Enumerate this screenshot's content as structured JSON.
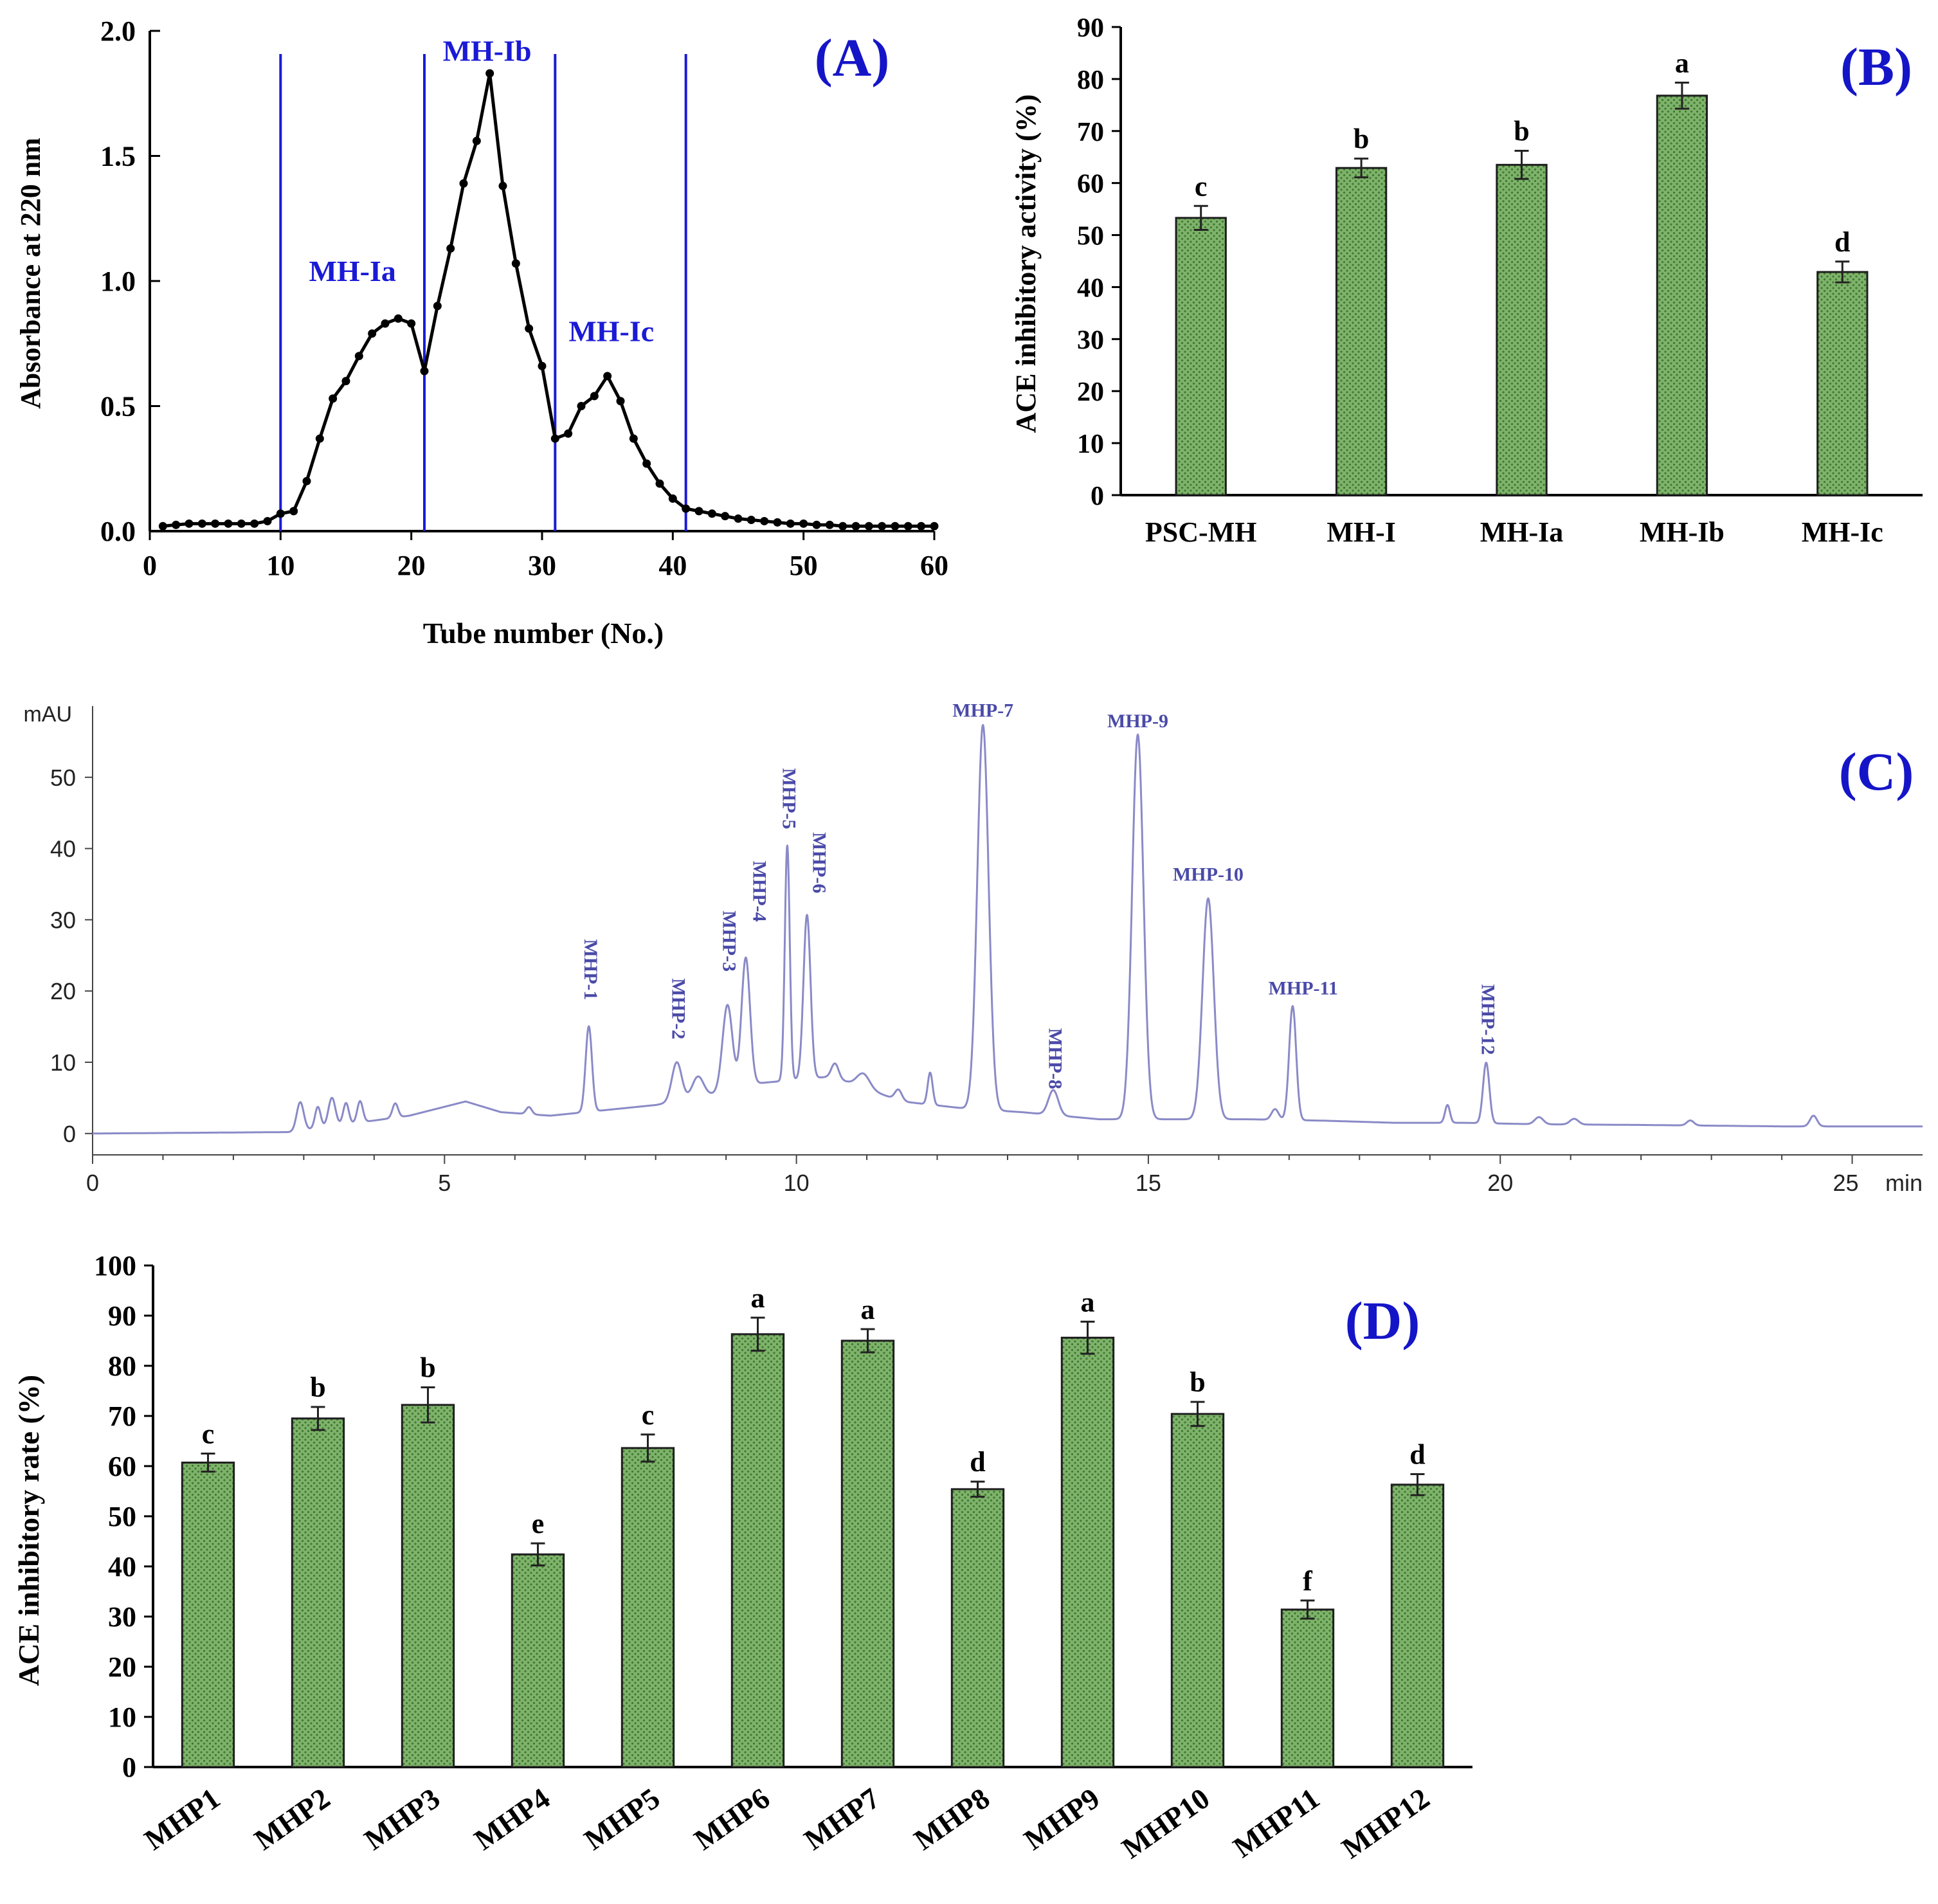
{
  "colors": {
    "axis": "#000000",
    "fraction_label": "#1a1ad6",
    "panel_label": "#1515c8",
    "hplc_trace": "#8a8ac8",
    "hplc_label": "#4a4aa8",
    "bar_fill": "#7fb26a",
    "bar_dot": "#3e7a34",
    "bar_edge": "#1e1e1e"
  },
  "chart_data": [
    {
      "id": "A",
      "type": "line",
      "panel_label": "(A)",
      "xlabel": "Tube number (No.)",
      "ylabel": "Absorbance at 220 nm",
      "xlim": [
        0,
        60
      ],
      "ylim": [
        0,
        2.0
      ],
      "xticks": [
        "0",
        "10",
        "20",
        "30",
        "40",
        "50",
        "60"
      ],
      "yticks": [
        "0.0",
        "0.5",
        "1.0",
        "1.5",
        "2.0"
      ],
      "x": [
        1,
        2,
        3,
        4,
        5,
        6,
        7,
        8,
        9,
        10,
        11,
        12,
        13,
        14,
        15,
        16,
        17,
        18,
        19,
        20,
        21,
        22,
        23,
        24,
        25,
        26,
        27,
        28,
        29,
        30,
        31,
        32,
        33,
        34,
        35,
        36,
        37,
        38,
        39,
        40,
        41,
        42,
        43,
        44,
        45,
        46,
        47,
        48,
        49,
        50,
        51,
        52,
        53,
        54,
        55,
        56,
        57,
        58,
        59,
        60
      ],
      "y": [
        0.02,
        0.025,
        0.03,
        0.03,
        0.03,
        0.03,
        0.03,
        0.03,
        0.04,
        0.07,
        0.08,
        0.2,
        0.37,
        0.53,
        0.6,
        0.7,
        0.79,
        0.83,
        0.85,
        0.83,
        0.64,
        0.9,
        1.13,
        1.39,
        1.56,
        1.83,
        1.38,
        1.07,
        0.81,
        0.66,
        0.37,
        0.39,
        0.5,
        0.54,
        0.62,
        0.52,
        0.37,
        0.27,
        0.19,
        0.13,
        0.09,
        0.08,
        0.07,
        0.06,
        0.05,
        0.045,
        0.04,
        0.035,
        0.03,
        0.03,
        0.025,
        0.025,
        0.02,
        0.02,
        0.02,
        0.02,
        0.02,
        0.02,
        0.02,
        0.02
      ],
      "dividers": [
        10,
        21,
        31,
        41
      ],
      "fractions": [
        {
          "label": "MH-Ia",
          "x": 15.5,
          "y": 1.0
        },
        {
          "label": "MH-Ib",
          "x": 25.8,
          "y": 1.88
        },
        {
          "label": "MH-Ic",
          "x": 35.3,
          "y": 0.76
        }
      ]
    },
    {
      "id": "B",
      "type": "bar",
      "panel_label": "(B)",
      "ylabel": "ACE inhibitory activity (%)",
      "ylim": [
        0,
        90
      ],
      "yticks": [
        "0",
        "10",
        "20",
        "30",
        "40",
        "50",
        "60",
        "70",
        "80",
        "90"
      ],
      "categories": [
        "PSC-MH",
        "MH-I",
        "MH-Ia",
        "MH-Ib",
        "MH-Ic"
      ],
      "values": [
        53.3,
        62.9,
        63.5,
        76.8,
        42.9
      ],
      "errors": [
        2.3,
        1.8,
        2.7,
        2.5,
        2.0
      ],
      "letters": [
        "c",
        "b",
        "b",
        "a",
        "d"
      ]
    },
    {
      "id": "C",
      "type": "line",
      "panel_label": "(C)",
      "ylabel": "mAU",
      "xunit": "min",
      "xlim": [
        0,
        26
      ],
      "ylim": [
        -3,
        60
      ],
      "xticks": [
        "0",
        "5",
        "10",
        "15",
        "20",
        "25"
      ],
      "yticks": [
        "0",
        "10",
        "20",
        "30",
        "40",
        "50"
      ],
      "baseline": [
        [
          0,
          0
        ],
        [
          2.8,
          0.2
        ],
        [
          4.5,
          2.5
        ],
        [
          5.3,
          4.5
        ],
        [
          5.8,
          3
        ],
        [
          6.5,
          2.5
        ],
        [
          7.5,
          3.5
        ],
        [
          8,
          4
        ],
        [
          8.6,
          5
        ],
        [
          9.4,
          7
        ],
        [
          10.5,
          8
        ],
        [
          11.5,
          4.5
        ],
        [
          12.4,
          3.5
        ],
        [
          13.2,
          3
        ],
        [
          14.3,
          2
        ],
        [
          15.4,
          2
        ],
        [
          16.4,
          2
        ],
        [
          17.5,
          1.8
        ],
        [
          18.5,
          1.5
        ],
        [
          19.5,
          1.5
        ],
        [
          20.5,
          1.3
        ],
        [
          22,
          1.2
        ],
        [
          24,
          1.0
        ],
        [
          26,
          1.0
        ]
      ],
      "peaks": [
        [
          2.95,
          4,
          0.05
        ],
        [
          3.2,
          3,
          0.04
        ],
        [
          3.4,
          4,
          0.05
        ],
        [
          3.6,
          3,
          0.04
        ],
        [
          3.8,
          3,
          0.04
        ],
        [
          4.3,
          2,
          0.04
        ],
        [
          6.2,
          1,
          0.04
        ],
        [
          7.05,
          12,
          0.045
        ],
        [
          8.3,
          5.5,
          0.07
        ],
        [
          8.6,
          3,
          0.08
        ],
        [
          9.02,
          12,
          0.07
        ],
        [
          9.28,
          18,
          0.06
        ],
        [
          9.87,
          33,
          0.035
        ],
        [
          10.15,
          23,
          0.05
        ],
        [
          10.55,
          2,
          0.05
        ],
        [
          10.95,
          2,
          0.09
        ],
        [
          11.45,
          1.5,
          0.05
        ],
        [
          11.9,
          4.5,
          0.035
        ],
        [
          12.65,
          54,
          0.08
        ],
        [
          13.65,
          3.5,
          0.07
        ],
        [
          14.85,
          54,
          0.08
        ],
        [
          15.85,
          31,
          0.08
        ],
        [
          16.8,
          1.5,
          0.05
        ],
        [
          17.05,
          16,
          0.05
        ],
        [
          19.25,
          2.5,
          0.035
        ],
        [
          19.8,
          8.5,
          0.045
        ],
        [
          20.55,
          1,
          0.06
        ],
        [
          21.05,
          0.8,
          0.06
        ],
        [
          22.7,
          0.7,
          0.05
        ],
        [
          24.45,
          1.5,
          0.05
        ]
      ],
      "peak_labels": [
        {
          "label": "MHP-1",
          "x": 7.05,
          "y": 23,
          "vertical": true
        },
        {
          "label": "MHP-2",
          "x": 8.3,
          "y": 17.5,
          "vertical": true
        },
        {
          "label": "MHP-3",
          "x": 9.02,
          "y": 27,
          "vertical": true
        },
        {
          "label": "MHP-4",
          "x": 9.45,
          "y": 34,
          "vertical": true
        },
        {
          "label": "MHP-5",
          "x": 9.87,
          "y": 47,
          "vertical": true
        },
        {
          "label": "MHP-6",
          "x": 10.3,
          "y": 38,
          "vertical": true
        },
        {
          "label": "MHP-7",
          "x": 12.65,
          "y": 58.5,
          "vertical": false
        },
        {
          "label": "MHP-8",
          "x": 13.65,
          "y": 10.5,
          "vertical": true
        },
        {
          "label": "MHP-9",
          "x": 14.85,
          "y": 57,
          "vertical": false
        },
        {
          "label": "MHP-10",
          "x": 15.85,
          "y": 35.5,
          "vertical": false
        },
        {
          "label": "MHP-11",
          "x": 17.2,
          "y": 19.5,
          "vertical": false
        },
        {
          "label": "MHP-12",
          "x": 19.8,
          "y": 16,
          "vertical": true
        }
      ]
    },
    {
      "id": "D",
      "type": "bar",
      "panel_label": "(D)",
      "ylabel": "ACE inhibitory rate (%)",
      "ylim": [
        0,
        100
      ],
      "yticks": [
        "0",
        "10",
        "20",
        "30",
        "40",
        "50",
        "60",
        "70",
        "80",
        "90",
        "100"
      ],
      "categories": [
        "MHP1",
        "MHP2",
        "MHP3",
        "MHP4",
        "MHP5",
        "MHP6",
        "MHP7",
        "MHP8",
        "MHP9",
        "MHP10",
        "MHP11",
        "MHP12"
      ],
      "values": [
        60.7,
        69.5,
        72.2,
        42.4,
        63.6,
        86.3,
        85.0,
        55.4,
        85.6,
        70.4,
        31.4,
        56.3
      ],
      "errors": [
        1.8,
        2.3,
        3.5,
        2.2,
        2.7,
        3.3,
        2.3,
        1.5,
        3.2,
        2.4,
        1.8,
        2.1
      ],
      "letters": [
        "c",
        "b",
        "b",
        "e",
        "c",
        "a",
        "a",
        "d",
        "a",
        "b",
        "f",
        "d"
      ]
    }
  ]
}
